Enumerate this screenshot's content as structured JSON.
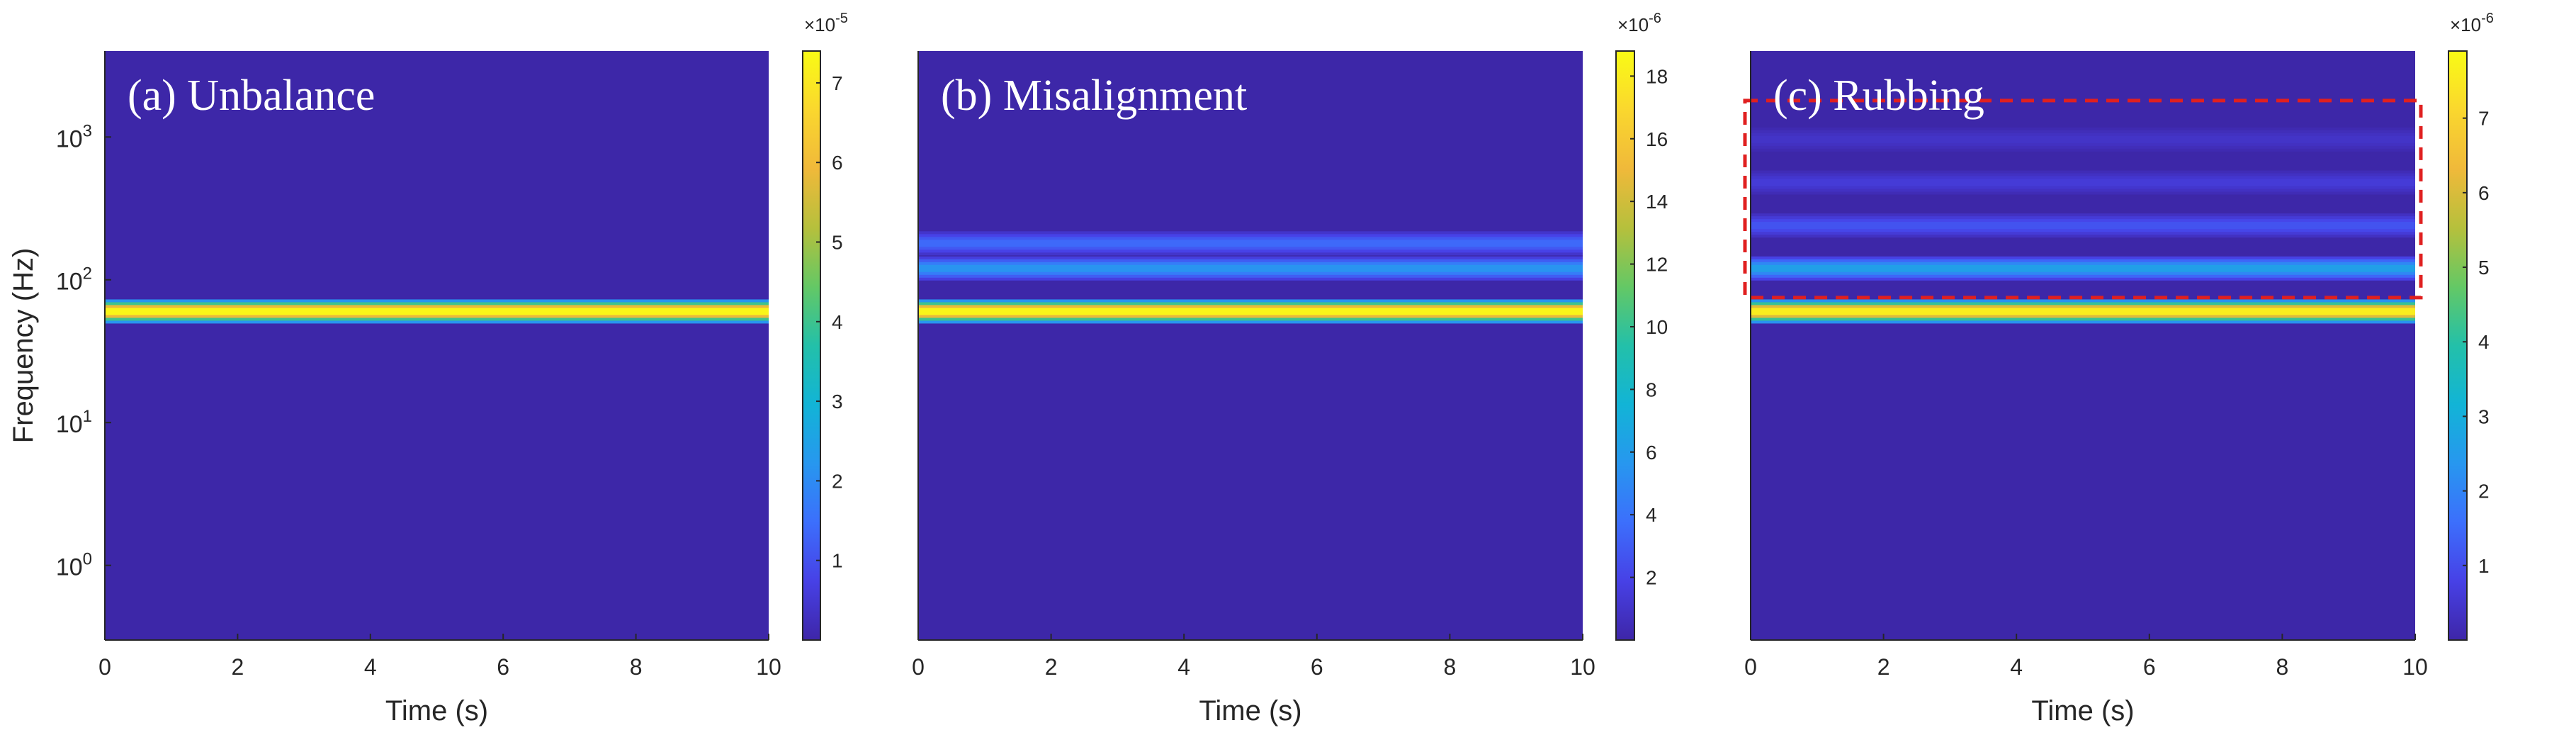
{
  "chart_data": [
    {
      "type": "heatmap",
      "panel_label": "(a) Unbalance",
      "xlabel": "Time (s)",
      "ylabel": "Frequency (Hz)",
      "xlim": [
        0,
        10
      ],
      "ylim": [
        0.3,
        4000
      ],
      "yscale": "log",
      "x_ticks": [
        "0",
        "2",
        "4",
        "6",
        "8",
        "10"
      ],
      "y_ticks": [
        {
          "base": "10",
          "exp": "0",
          "value": 1
        },
        {
          "base": "10",
          "exp": "1",
          "value": 10
        },
        {
          "base": "10",
          "exp": "2",
          "value": 100
        },
        {
          "base": "10",
          "exp": "3",
          "value": 1000
        }
      ],
      "colorbar": {
        "exponent_label": "×10",
        "exponent": "-5",
        "ticks": [
          "1",
          "2",
          "3",
          "4",
          "5",
          "6",
          "7"
        ],
        "max": 7.4
      },
      "bands": [
        {
          "freq_hz": 60,
          "intensity": 7.3
        }
      ],
      "highlight_box": null
    },
    {
      "type": "heatmap",
      "panel_label": "(b) Misalignment",
      "xlabel": "Time (s)",
      "ylabel": "",
      "xlim": [
        0,
        10
      ],
      "ylim": [
        0.3,
        4000
      ],
      "yscale": "log",
      "x_ticks": [
        "0",
        "2",
        "4",
        "6",
        "8",
        "10"
      ],
      "y_ticks": [],
      "colorbar": {
        "exponent_label": "×10",
        "exponent": "-6",
        "ticks": [
          "2",
          "4",
          "6",
          "8",
          "10",
          "12",
          "14",
          "16",
          "18"
        ],
        "max": 18.8
      },
      "bands": [
        {
          "freq_hz": 60,
          "intensity": 18.5
        },
        {
          "freq_hz": 120,
          "intensity": 5.5
        },
        {
          "freq_hz": 180,
          "intensity": 3.5
        }
      ],
      "highlight_box": null
    },
    {
      "type": "heatmap",
      "panel_label": "(c) Rubbing",
      "xlabel": "Time (s)",
      "ylabel": "",
      "xlim": [
        0,
        10
      ],
      "ylim": [
        0.3,
        4000
      ],
      "yscale": "log",
      "x_ticks": [
        "0",
        "2",
        "4",
        "6",
        "8",
        "10"
      ],
      "y_ticks": [],
      "colorbar": {
        "exponent_label": "×10",
        "exponent": "-6",
        "ticks": [
          "1",
          "2",
          "3",
          "4",
          "5",
          "6",
          "7"
        ],
        "max": 7.9
      },
      "bands": [
        {
          "freq_hz": 60,
          "intensity": 7.6
        },
        {
          "freq_hz": 120,
          "intensity": 2.6
        },
        {
          "freq_hz": 240,
          "intensity": 1.1
        },
        {
          "freq_hz": 480,
          "intensity": 0.6
        },
        {
          "freq_hz": 960,
          "intensity": 0.4
        }
      ],
      "highlight_box": {
        "freq_low_hz": 75,
        "freq_high_hz": 1800,
        "style": "dashed",
        "color": "#e02020"
      }
    }
  ],
  "colors": {
    "background": "#3d27a8",
    "box": "#e02020",
    "axis": "#262626"
  }
}
